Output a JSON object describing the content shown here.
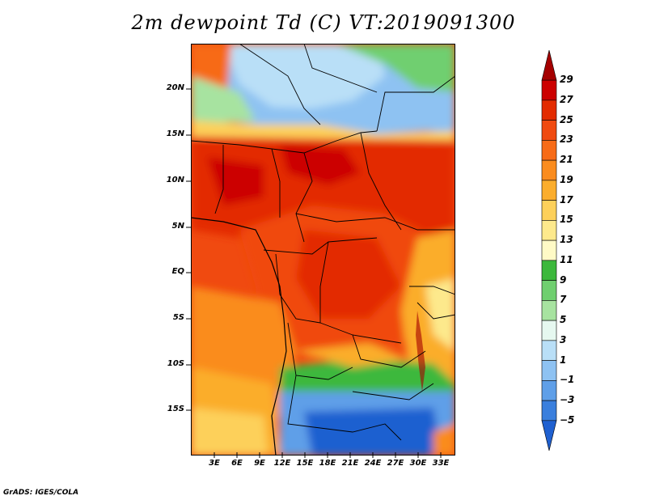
{
  "title": "2m dewpoint Td (C) VT:2019091300",
  "y_axis_labels": [
    "20N",
    "15N",
    "10N",
    "5N",
    "EQ",
    "5S",
    "10S",
    "15S"
  ],
  "x_axis_labels": [
    "3E",
    "6E",
    "9E",
    "12E",
    "15E",
    "18E",
    "21E",
    "24E",
    "27E",
    "30E",
    "33E"
  ],
  "colorbar": {
    "labels": [
      "29",
      "27",
      "25",
      "23",
      "21",
      "19",
      "17",
      "15",
      "13",
      "11",
      "9",
      "7",
      "5",
      "3",
      "1",
      "−1",
      "−3",
      "−5"
    ],
    "colors": [
      "#a50000",
      "#cc0000",
      "#e32b00",
      "#f04a10",
      "#f76b17",
      "#fa8c1e",
      "#fbad2c",
      "#fdd05a",
      "#fde98c",
      "#fffac6",
      "#3cb83c",
      "#6fcf6f",
      "#a7e3a0",
      "#e6f8f0",
      "#b9dff7",
      "#8ec2f2",
      "#5f9fe8",
      "#3a7fdd",
      "#1f60d0"
    ]
  },
  "credit": "GrADS: IGES/COLA"
}
